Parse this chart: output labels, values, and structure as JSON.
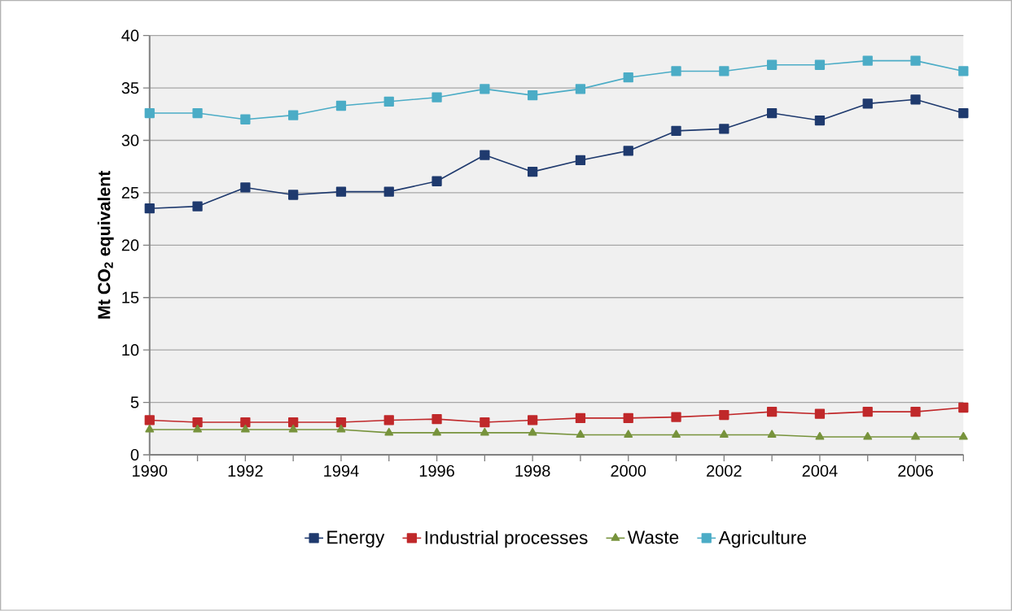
{
  "chart_data": {
    "type": "line",
    "ylabel": "Mt CO$_{2}$ equivalent",
    "x": [
      1990,
      1991,
      1992,
      1993,
      1994,
      1995,
      1996,
      1997,
      1998,
      1999,
      2000,
      2001,
      2002,
      2003,
      2004,
      2005,
      2006,
      2007
    ],
    "series": [
      {
        "name": "Energy",
        "color": "#1f3a6e",
        "marker": "square",
        "values": [
          23.5,
          23.7,
          25.5,
          24.8,
          25.1,
          25.1,
          26.1,
          28.6,
          27.0,
          28.1,
          29.0,
          30.9,
          31.1,
          32.6,
          31.9,
          33.5,
          33.9,
          32.6
        ]
      },
      {
        "name": "Industrial processes",
        "color": "#c0282a",
        "marker": "square",
        "values": [
          3.3,
          3.1,
          3.1,
          3.1,
          3.1,
          3.3,
          3.4,
          3.1,
          3.3,
          3.5,
          3.5,
          3.6,
          3.8,
          4.1,
          3.9,
          4.1,
          4.1,
          4.5
        ]
      },
      {
        "name": "Waste",
        "color": "#77933c",
        "marker": "triangle",
        "values": [
          2.4,
          2.4,
          2.4,
          2.4,
          2.4,
          2.1,
          2.1,
          2.1,
          2.1,
          1.9,
          1.9,
          1.9,
          1.9,
          1.9,
          1.7,
          1.7,
          1.7,
          1.7
        ]
      },
      {
        "name": "Agriculture",
        "color": "#4bacc6",
        "marker": "square",
        "values": [
          32.6,
          32.6,
          32.0,
          32.4,
          33.3,
          33.7,
          34.1,
          34.9,
          34.3,
          34.9,
          36.0,
          36.6,
          36.6,
          37.2,
          37.2,
          37.6,
          37.6,
          36.6
        ]
      }
    ],
    "xlim": [
      1990,
      2007
    ],
    "xticks": [
      1990,
      {
        "value": 1991,
        "label": null
      },
      1992,
      {
        "value": 1993,
        "label": null
      },
      1994,
      {
        "value": 1995,
        "label": null
      },
      1996,
      {
        "value": 1997,
        "label": null
      },
      1998,
      {
        "value": 1999,
        "label": null
      },
      2000,
      {
        "value": 2001,
        "label": null
      },
      2002,
      {
        "value": 2003,
        "label": null
      },
      2004,
      {
        "value": 2005,
        "label": null
      },
      2006,
      {
        "value": 2007,
        "label": null
      }
    ],
    "ylim": [
      0,
      40
    ],
    "yticks": [
      0,
      5,
      10,
      15,
      20,
      25,
      30,
      35,
      40
    ],
    "grid": "y",
    "legend": "bottom",
    "line_style": "solid"
  }
}
